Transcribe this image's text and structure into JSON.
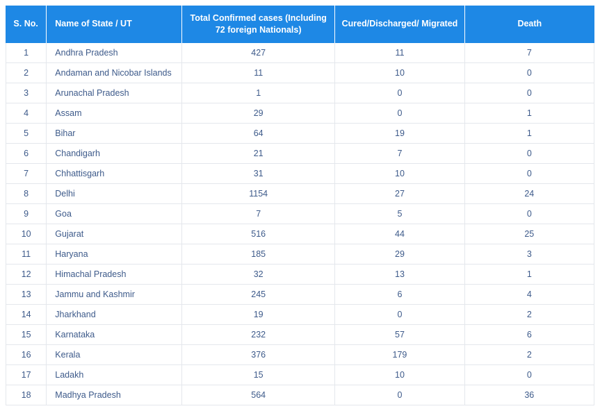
{
  "table": {
    "header_bg": "#1e88e5",
    "header_fg": "#ffffff",
    "cell_fg": "#3d5a8a",
    "border_color": "#e4e7ec",
    "columns": [
      {
        "label": "S. No."
      },
      {
        "label": "Name of State / UT"
      },
      {
        "label": "Total Confirmed cases (Including 72 foreign Nationals)"
      },
      {
        "label": "Cured/Discharged/\nMigrated"
      },
      {
        "label": "Death"
      }
    ],
    "rows": [
      {
        "sno": "1",
        "state": "Andhra Pradesh",
        "confirmed": "427",
        "cured": "11",
        "death": "7"
      },
      {
        "sno": "2",
        "state": "Andaman and Nicobar Islands",
        "confirmed": "11",
        "cured": "10",
        "death": "0"
      },
      {
        "sno": "3",
        "state": "Arunachal Pradesh",
        "confirmed": "1",
        "cured": "0",
        "death": "0"
      },
      {
        "sno": "4",
        "state": "Assam",
        "confirmed": "29",
        "cured": "0",
        "death": "1"
      },
      {
        "sno": "5",
        "state": "Bihar",
        "confirmed": "64",
        "cured": "19",
        "death": "1"
      },
      {
        "sno": "6",
        "state": "Chandigarh",
        "confirmed": "21",
        "cured": "7",
        "death": "0"
      },
      {
        "sno": "7",
        "state": "Chhattisgarh",
        "confirmed": "31",
        "cured": "10",
        "death": "0"
      },
      {
        "sno": "8",
        "state": "Delhi",
        "confirmed": "1154",
        "cured": "27",
        "death": "24"
      },
      {
        "sno": "9",
        "state": "Goa",
        "confirmed": "7",
        "cured": "5",
        "death": "0"
      },
      {
        "sno": "10",
        "state": "Gujarat",
        "confirmed": "516",
        "cured": "44",
        "death": "25"
      },
      {
        "sno": "11",
        "state": "Haryana",
        "confirmed": "185",
        "cured": "29",
        "death": "3"
      },
      {
        "sno": "12",
        "state": "Himachal Pradesh",
        "confirmed": "32",
        "cured": "13",
        "death": "1"
      },
      {
        "sno": "13",
        "state": "Jammu and Kashmir",
        "confirmed": "245",
        "cured": "6",
        "death": "4"
      },
      {
        "sno": "14",
        "state": "Jharkhand",
        "confirmed": "19",
        "cured": "0",
        "death": "2"
      },
      {
        "sno": "15",
        "state": "Karnataka",
        "confirmed": "232",
        "cured": "57",
        "death": "6"
      },
      {
        "sno": "16",
        "state": "Kerala",
        "confirmed": "376",
        "cured": "179",
        "death": "2"
      },
      {
        "sno": "17",
        "state": "Ladakh",
        "confirmed": "15",
        "cured": "10",
        "death": "0"
      },
      {
        "sno": "18",
        "state": "Madhya Pradesh",
        "confirmed": "564",
        "cured": "0",
        "death": "36"
      }
    ]
  }
}
